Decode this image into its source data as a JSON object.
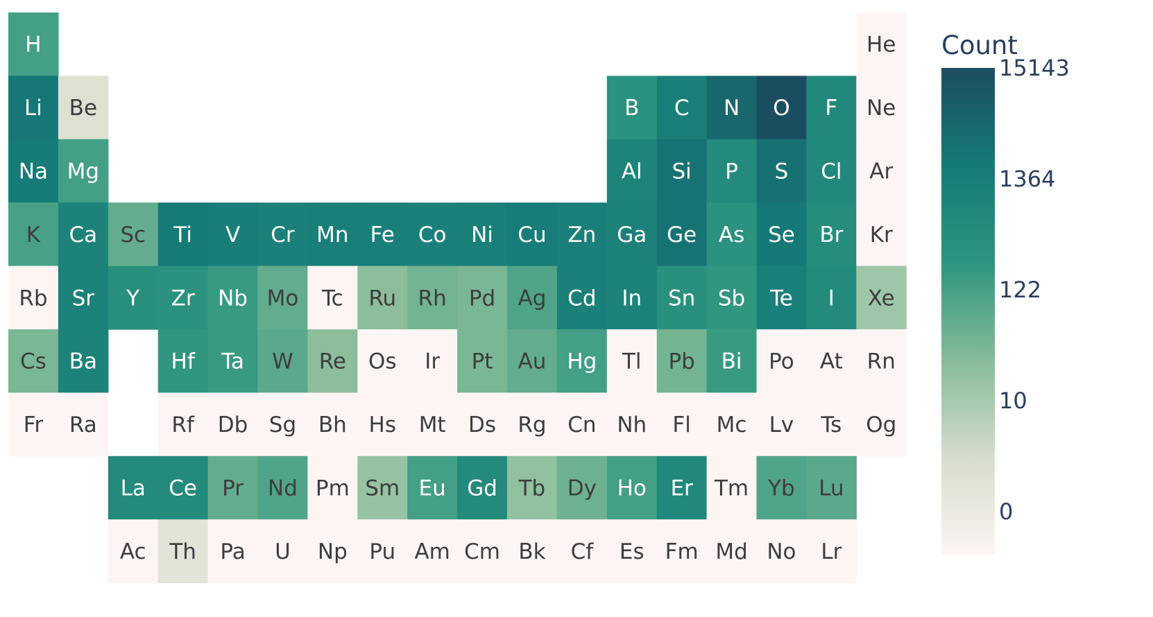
{
  "chart_data": {
    "type": "heatmap",
    "subtype": "periodic-table",
    "colorbar": {
      "title": "Count",
      "tick_labels": [
        "0",
        "10",
        "122",
        "1364",
        "15143"
      ],
      "scale": "log10(count+1)",
      "colors": [
        "#fdf5f4",
        "#d6ddcb",
        "#86bc98",
        "#2d957f",
        "#167a77",
        "#1b4d60"
      ]
    },
    "text_colors": {
      "light_cell": "#3d3d3d",
      "dark_cell": "#ffffff"
    },
    "elements": [
      {
        "s": "H",
        "row": 1,
        "col": 1,
        "count": 200
      },
      {
        "s": "He",
        "row": 1,
        "col": 18,
        "count": 0
      },
      {
        "s": "Li",
        "row": 2,
        "col": 1,
        "count": 2500
      },
      {
        "s": "Be",
        "row": 2,
        "col": 2,
        "count": 4
      },
      {
        "s": "B",
        "row": 2,
        "col": 13,
        "count": 400
      },
      {
        "s": "C",
        "row": 2,
        "col": 14,
        "count": 1500
      },
      {
        "s": "N",
        "row": 2,
        "col": 15,
        "count": 5000
      },
      {
        "s": "O",
        "row": 2,
        "col": 16,
        "count": 15143
      },
      {
        "s": "F",
        "row": 2,
        "col": 17,
        "count": 800
      },
      {
        "s": "Ne",
        "row": 2,
        "col": 18,
        "count": 0
      },
      {
        "s": "Na",
        "row": 3,
        "col": 1,
        "count": 2000
      },
      {
        "s": "Mg",
        "row": 3,
        "col": 2,
        "count": 200
      },
      {
        "s": "Al",
        "row": 3,
        "col": 13,
        "count": 1100
      },
      {
        "s": "Si",
        "row": 3,
        "col": 14,
        "count": 3000
      },
      {
        "s": "P",
        "row": 3,
        "col": 15,
        "count": 700
      },
      {
        "s": "S",
        "row": 3,
        "col": 16,
        "count": 3200
      },
      {
        "s": "Cl",
        "row": 3,
        "col": 17,
        "count": 800
      },
      {
        "s": "Ar",
        "row": 3,
        "col": 18,
        "count": 0
      },
      {
        "s": "K",
        "row": 4,
        "col": 1,
        "count": 180
      },
      {
        "s": "Ca",
        "row": 4,
        "col": 2,
        "count": 1200
      },
      {
        "s": "Sc",
        "row": 4,
        "col": 3,
        "count": 100
      },
      {
        "s": "Ti",
        "row": 4,
        "col": 4,
        "count": 2200
      },
      {
        "s": "V",
        "row": 4,
        "col": 5,
        "count": 1700
      },
      {
        "s": "Cr",
        "row": 4,
        "col": 6,
        "count": 1400
      },
      {
        "s": "Mn",
        "row": 4,
        "col": 7,
        "count": 1600
      },
      {
        "s": "Fe",
        "row": 4,
        "col": 8,
        "count": 1600
      },
      {
        "s": "Co",
        "row": 4,
        "col": 9,
        "count": 1400
      },
      {
        "s": "Ni",
        "row": 4,
        "col": 10,
        "count": 1600
      },
      {
        "s": "Cu",
        "row": 4,
        "col": 11,
        "count": 1800
      },
      {
        "s": "Zn",
        "row": 4,
        "col": 12,
        "count": 1500
      },
      {
        "s": "Ga",
        "row": 4,
        "col": 13,
        "count": 1300
      },
      {
        "s": "Ge",
        "row": 4,
        "col": 14,
        "count": 3000
      },
      {
        "s": "As",
        "row": 4,
        "col": 15,
        "count": 400
      },
      {
        "s": "Se",
        "row": 4,
        "col": 16,
        "count": 2300
      },
      {
        "s": "Br",
        "row": 4,
        "col": 17,
        "count": 600
      },
      {
        "s": "Kr",
        "row": 4,
        "col": 18,
        "count": 0
      },
      {
        "s": "Rb",
        "row": 5,
        "col": 1,
        "count": 0
      },
      {
        "s": "Sr",
        "row": 5,
        "col": 2,
        "count": 1300
      },
      {
        "s": "Y",
        "row": 5,
        "col": 3,
        "count": 500
      },
      {
        "s": "Zr",
        "row": 5,
        "col": 4,
        "count": 400
      },
      {
        "s": "Nb",
        "row": 5,
        "col": 5,
        "count": 250
      },
      {
        "s": "Mo",
        "row": 5,
        "col": 6,
        "count": 100
      },
      {
        "s": "Tc",
        "row": 5,
        "col": 7,
        "count": 0
      },
      {
        "s": "Ru",
        "row": 5,
        "col": 8,
        "count": 40
      },
      {
        "s": "Rh",
        "row": 5,
        "col": 9,
        "count": 70
      },
      {
        "s": "Pd",
        "row": 5,
        "col": 10,
        "count": 60
      },
      {
        "s": "Ag",
        "row": 5,
        "col": 11,
        "count": 150
      },
      {
        "s": "Cd",
        "row": 5,
        "col": 12,
        "count": 1400
      },
      {
        "s": "In",
        "row": 5,
        "col": 13,
        "count": 1200
      },
      {
        "s": "Sn",
        "row": 5,
        "col": 14,
        "count": 450
      },
      {
        "s": "Sb",
        "row": 5,
        "col": 15,
        "count": 300
      },
      {
        "s": "Te",
        "row": 5,
        "col": 16,
        "count": 1500
      },
      {
        "s": "I",
        "row": 5,
        "col": 17,
        "count": 700
      },
      {
        "s": "Xe",
        "row": 5,
        "col": 18,
        "count": 25
      },
      {
        "s": "Cs",
        "row": 6,
        "col": 1,
        "count": 60
      },
      {
        "s": "Ba",
        "row": 6,
        "col": 2,
        "count": 1200
      },
      {
        "s": "Hf",
        "row": 6,
        "col": 4,
        "count": 300
      },
      {
        "s": "Ta",
        "row": 6,
        "col": 5,
        "count": 250
      },
      {
        "s": "W",
        "row": 6,
        "col": 6,
        "count": 120
      },
      {
        "s": "Re",
        "row": 6,
        "col": 7,
        "count": 40
      },
      {
        "s": "Os",
        "row": 6,
        "col": 8,
        "count": 0
      },
      {
        "s": "Ir",
        "row": 6,
        "col": 9,
        "count": 0
      },
      {
        "s": "Pt",
        "row": 6,
        "col": 10,
        "count": 60
      },
      {
        "s": "Au",
        "row": 6,
        "col": 11,
        "count": 100
      },
      {
        "s": "Hg",
        "row": 6,
        "col": 12,
        "count": 200
      },
      {
        "s": "Tl",
        "row": 6,
        "col": 13,
        "count": 0
      },
      {
        "s": "Pb",
        "row": 6,
        "col": 14,
        "count": 70
      },
      {
        "s": "Bi",
        "row": 6,
        "col": 15,
        "count": 250
      },
      {
        "s": "Po",
        "row": 6,
        "col": 16,
        "count": 0
      },
      {
        "s": "At",
        "row": 6,
        "col": 17,
        "count": 0
      },
      {
        "s": "Rn",
        "row": 6,
        "col": 18,
        "count": 0
      },
      {
        "s": "Fr",
        "row": 7,
        "col": 1,
        "count": 0
      },
      {
        "s": "Ra",
        "row": 7,
        "col": 2,
        "count": 0
      },
      {
        "s": "Rf",
        "row": 7,
        "col": 4,
        "count": 0
      },
      {
        "s": "Db",
        "row": 7,
        "col": 5,
        "count": 0
      },
      {
        "s": "Sg",
        "row": 7,
        "col": 6,
        "count": 0
      },
      {
        "s": "Bh",
        "row": 7,
        "col": 7,
        "count": 0
      },
      {
        "s": "Hs",
        "row": 7,
        "col": 8,
        "count": 0
      },
      {
        "s": "Mt",
        "row": 7,
        "col": 9,
        "count": 0
      },
      {
        "s": "Ds",
        "row": 7,
        "col": 10,
        "count": 0
      },
      {
        "s": "Rg",
        "row": 7,
        "col": 11,
        "count": 0
      },
      {
        "s": "Cn",
        "row": 7,
        "col": 12,
        "count": 0
      },
      {
        "s": "Nh",
        "row": 7,
        "col": 13,
        "count": 0
      },
      {
        "s": "Fl",
        "row": 7,
        "col": 14,
        "count": 0
      },
      {
        "s": "Mc",
        "row": 7,
        "col": 15,
        "count": 0
      },
      {
        "s": "Lv",
        "row": 7,
        "col": 16,
        "count": 0
      },
      {
        "s": "Ts",
        "row": 7,
        "col": 17,
        "count": 0
      },
      {
        "s": "Og",
        "row": 7,
        "col": 18,
        "count": 0
      },
      {
        "s": "La",
        "row": 8,
        "col": 3,
        "count": 700
      },
      {
        "s": "Ce",
        "row": 8,
        "col": 4,
        "count": 700
      },
      {
        "s": "Pr",
        "row": 8,
        "col": 5,
        "count": 100
      },
      {
        "s": "Nd",
        "row": 8,
        "col": 6,
        "count": 150
      },
      {
        "s": "Pm",
        "row": 8,
        "col": 7,
        "count": 0
      },
      {
        "s": "Sm",
        "row": 8,
        "col": 8,
        "count": 30
      },
      {
        "s": "Eu",
        "row": 8,
        "col": 9,
        "count": 200
      },
      {
        "s": "Gd",
        "row": 8,
        "col": 10,
        "count": 700
      },
      {
        "s": "Tb",
        "row": 8,
        "col": 11,
        "count": 35
      },
      {
        "s": "Dy",
        "row": 8,
        "col": 12,
        "count": 80
      },
      {
        "s": "Ho",
        "row": 8,
        "col": 13,
        "count": 200
      },
      {
        "s": "Er",
        "row": 8,
        "col": 14,
        "count": 800
      },
      {
        "s": "Tm",
        "row": 8,
        "col": 15,
        "count": 0
      },
      {
        "s": "Yb",
        "row": 8,
        "col": 16,
        "count": 150
      },
      {
        "s": "Lu",
        "row": 8,
        "col": 17,
        "count": 120
      },
      {
        "s": "Ac",
        "row": 9,
        "col": 3,
        "count": 0
      },
      {
        "s": "Th",
        "row": 9,
        "col": 4,
        "count": 3
      },
      {
        "s": "Pa",
        "row": 9,
        "col": 5,
        "count": 0
      },
      {
        "s": "U",
        "row": 9,
        "col": 6,
        "count": 0
      },
      {
        "s": "Np",
        "row": 9,
        "col": 7,
        "count": 0
      },
      {
        "s": "Pu",
        "row": 9,
        "col": 8,
        "count": 0
      },
      {
        "s": "Am",
        "row": 9,
        "col": 9,
        "count": 0
      },
      {
        "s": "Cm",
        "row": 9,
        "col": 10,
        "count": 0
      },
      {
        "s": "Bk",
        "row": 9,
        "col": 11,
        "count": 0
      },
      {
        "s": "Cf",
        "row": 9,
        "col": 12,
        "count": 0
      },
      {
        "s": "Es",
        "row": 9,
        "col": 13,
        "count": 0
      },
      {
        "s": "Fm",
        "row": 9,
        "col": 14,
        "count": 0
      },
      {
        "s": "Md",
        "row": 9,
        "col": 15,
        "count": 0
      },
      {
        "s": "No",
        "row": 9,
        "col": 16,
        "count": 0
      },
      {
        "s": "Lr",
        "row": 9,
        "col": 17,
        "count": 0
      }
    ]
  }
}
